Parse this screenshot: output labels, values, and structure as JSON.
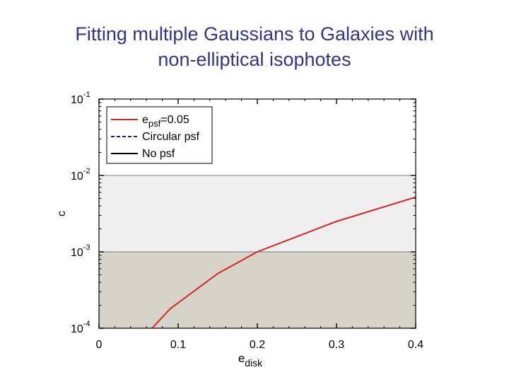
{
  "slide": {
    "title_line1": "Fitting multiple Gaussians to Galaxies with",
    "title_line2": "non-elliptical isophotes"
  },
  "chart_data": {
    "type": "line",
    "xlabel": "e",
    "xlabel_sub": "disk",
    "ylabel": "c",
    "xlim": [
      0,
      0.4
    ],
    "ylim": [
      0.0001,
      0.1
    ],
    "yscale": "log",
    "xticks": [
      {
        "value": 0,
        "label": "0"
      },
      {
        "value": 0.1,
        "label": "0.1"
      },
      {
        "value": 0.2,
        "label": "0.2"
      },
      {
        "value": 0.3,
        "label": "0.3"
      },
      {
        "value": 0.4,
        "label": "0.4"
      }
    ],
    "yticks": [
      {
        "value": 0.1,
        "base": "10",
        "exp": "-1"
      },
      {
        "value": 0.01,
        "base": "10",
        "exp": "-2"
      },
      {
        "value": 0.001,
        "base": "10",
        "exp": "-3"
      },
      {
        "value": 0.0001,
        "base": "10",
        "exp": "-4"
      }
    ],
    "bands": [
      {
        "y0": 0.001,
        "y1": 0.01,
        "color": "#efefef"
      },
      {
        "y0": 0.0001,
        "y1": 0.001,
        "color": "#d6d3c8"
      }
    ],
    "series": [
      {
        "legend_main": "e",
        "legend_sub": "psf",
        "legend_rest": "=0.05",
        "color": "#dd2222",
        "dash": "solid",
        "x": [
          0.067,
          0.09,
          0.15,
          0.2,
          0.3,
          0.4
        ],
        "y": [
          0.0001,
          0.00018,
          0.00052,
          0.001,
          0.0025,
          0.0052
        ]
      },
      {
        "legend_main": "Circular psf",
        "color": "#1a1aa8",
        "dash": "dashed",
        "x": [],
        "y": []
      },
      {
        "legend_main": "No psf",
        "color": "#000000",
        "dash": "solid",
        "x": [],
        "y": []
      }
    ],
    "legend_position": "top-left",
    "grid": false
  }
}
